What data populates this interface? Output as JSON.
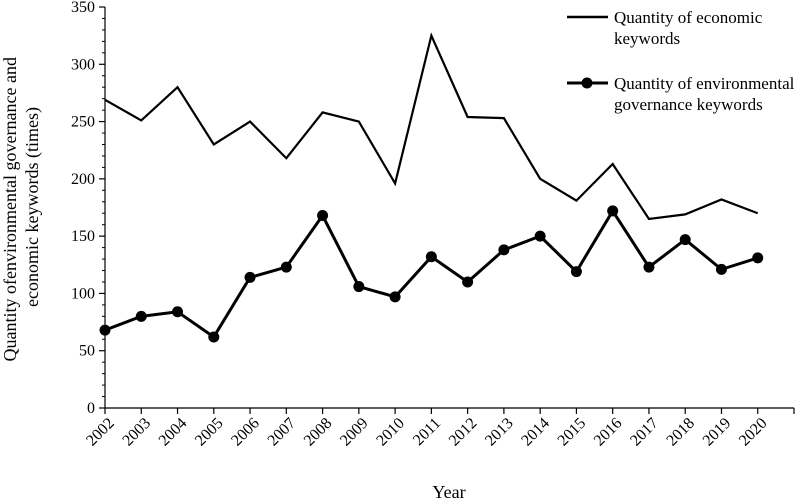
{
  "chart_data": {
    "type": "line",
    "xlabel": "Year",
    "ylabel": [
      "Quantity ofenvironmental governance and",
      "economic keywords (times)"
    ],
    "ylim": [
      0,
      350
    ],
    "yticks": [
      0,
      50,
      100,
      150,
      200,
      250,
      300,
      350
    ],
    "grid": false,
    "legend_position": "top-right",
    "categories": [
      "2002",
      "2003",
      "2004",
      "2005",
      "2006",
      "2007",
      "2008",
      "2009",
      "2010",
      "2011",
      "2012",
      "2013",
      "2014",
      "2015",
      "2016",
      "2017",
      "2018",
      "2019",
      "2020"
    ],
    "series": [
      {
        "name": "Quantity of economic keywords",
        "name_lines": [
          "Quantity of economic",
          "keywords"
        ],
        "marker": "none",
        "color": "#000000",
        "values": [
          269,
          251,
          280,
          230,
          250,
          218,
          258,
          250,
          196,
          325,
          254,
          253,
          200,
          181,
          213,
          165,
          169,
          182,
          170
        ]
      },
      {
        "name": "Quantity of environmental governance keywords",
        "name_lines": [
          "Quantity of environmental",
          "governance keywords"
        ],
        "marker": "circle",
        "color": "#000000",
        "values": [
          68,
          80,
          84,
          62,
          114,
          123,
          168,
          106,
          97,
          132,
          110,
          138,
          150,
          119,
          172,
          123,
          147,
          121,
          131
        ]
      }
    ]
  }
}
